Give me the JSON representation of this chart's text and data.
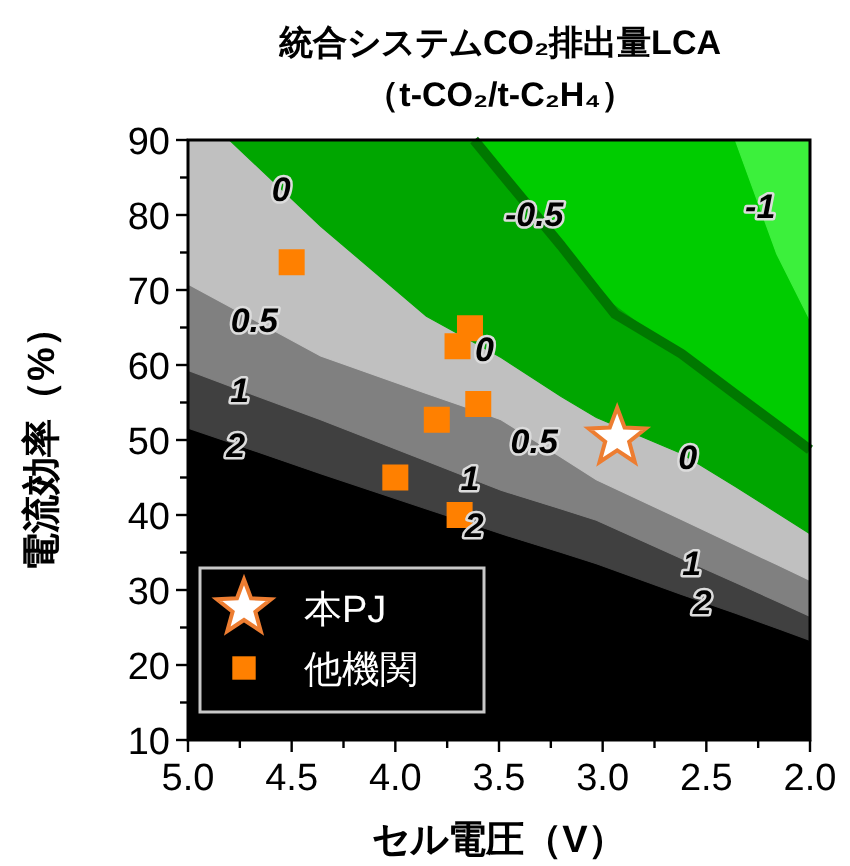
{
  "chart_data": {
    "type": "area",
    "title": "統合システムCO₂排出量LCA",
    "subtitle": "（t-CO₂/t-C₂H₄）",
    "xlabel": "セル電圧（V）",
    "ylabel": "電流効率（%）",
    "xlim": [
      5,
      2
    ],
    "ylim": [
      10,
      90
    ],
    "xticks": [
      {
        "value": 5,
        "label": "5.0"
      },
      {
        "value": 4.75,
        "label": null
      },
      {
        "value": 4.5,
        "label": "4.5"
      },
      {
        "value": 4.25,
        "label": null
      },
      {
        "value": 4,
        "label": "4.0"
      },
      {
        "value": 3.75,
        "label": null
      },
      {
        "value": 3.5,
        "label": "3.5"
      },
      {
        "value": 3.25,
        "label": null
      },
      {
        "value": 3,
        "label": "3.0"
      },
      {
        "value": 2.75,
        "label": null
      },
      {
        "value": 2.5,
        "label": "2.5"
      },
      {
        "value": 2.25,
        "label": null
      },
      {
        "value": 2,
        "label": "2.0"
      }
    ],
    "yticks": [
      10,
      {
        "value": 15,
        "label": null
      },
      20,
      {
        "value": 25,
        "label": null
      },
      30,
      {
        "value": 35,
        "label": null
      },
      40,
      {
        "value": 45,
        "label": null
      },
      50,
      {
        "value": 55,
        "label": null
      },
      60,
      {
        "value": 65,
        "label": null
      },
      70,
      {
        "value": 75,
        "label": null
      },
      80,
      {
        "value": 85,
        "label": null
      },
      90
    ],
    "grid": false,
    "legend": "bottom left",
    "x": [
      5,
      4.8,
      4.36,
      3.85,
      3.62,
      3.49,
      3.2,
      3.03,
      2.62,
      2.36,
      2.16,
      2
    ],
    "series": [
      {
        "color": "#000000",
        "values": [
          51.6,
          49.7,
          45.5,
          40.8,
          38.7,
          37.5,
          35.0,
          33.5,
          29.4,
          26.9,
          24.9,
          23.3
        ]
      },
      {
        "color": "#404040",
        "values": [
          59.3,
          57.2,
          52.7,
          47.2,
          44.7,
          43.3,
          40.8,
          39.3,
          34.2,
          31.0,
          28.5,
          26.5
        ]
      },
      {
        "color": "#808080",
        "values": [
          70.8,
          67.8,
          61.2,
          56.2,
          54.0,
          52.7,
          47.7,
          44.7,
          39.4,
          36.0,
          33.4,
          31.3
        ]
      },
      {
        "color": "#c0c0c0",
        "values": [
          90,
          90,
          78.5,
          66.5,
          63.0,
          61.0,
          55.8,
          53.0,
          48.2,
          43.8,
          40.3,
          37.5
        ]
      },
      {
        "color": "#00a600",
        "values": [
          90,
          90,
          90,
          90,
          90,
          85.6,
          75.9,
          69.9,
          61.5,
          56.1,
          52.0,
          48.7
        ]
      },
      {
        "color": "#00cc00",
        "values": [
          90,
          90,
          90,
          90,
          90,
          90,
          90,
          90,
          90,
          90,
          74.8,
          66
        ]
      },
      {
        "color": "#3cf03c",
        "values": [
          90,
          90,
          90,
          90,
          90,
          90,
          90,
          90,
          90,
          90,
          90,
          90
        ]
      },
      {
        "type": "line",
        "color": "#007800",
        "x": [
          3.62,
          3.49,
          3.2,
          3.03,
          2.94,
          2.62,
          2.36,
          2.16,
          2
        ],
        "values": [
          90,
          85.6,
          75.9,
          69.9,
          66.8,
          61.5,
          56.1,
          52.0,
          48.7
        ]
      },
      {
        "type": "scatter",
        "name": "本PJ",
        "marker": "star",
        "color": "#ed7d31",
        "x": [
          2.93
        ],
        "values": [
          50.3
        ]
      },
      {
        "type": "scatter",
        "name": "他機関",
        "marker": "square",
        "color": "#ff8000",
        "x": [
          4.5,
          3.64,
          3.7,
          3.6,
          3.8,
          4.0,
          3.69
        ],
        "values": [
          73.7,
          64.9,
          62.5,
          54.8,
          52.7,
          45,
          40
        ]
      }
    ],
    "annotations": [
      {
        "text": "0",
        "x": 4.55,
        "y": 83.5
      },
      {
        "text": "0.5",
        "x": 4.68,
        "y": 66
      },
      {
        "text": "1",
        "x": 4.75,
        "y": 56.7
      },
      {
        "text": "2",
        "x": 4.77,
        "y": 49.4
      },
      {
        "text": "0",
        "x": 3.57,
        "y": 62.2
      },
      {
        "text": "1",
        "x": 3.64,
        "y": 44.9
      },
      {
        "text": "2",
        "x": 3.62,
        "y": 38.7
      },
      {
        "text": "0.5",
        "x": 3.33,
        "y": 49.9
      },
      {
        "text": "0",
        "x": 2.59,
        "y": 47.7
      },
      {
        "text": "1",
        "x": 2.57,
        "y": 33.6
      },
      {
        "text": "2",
        "x": 2.52,
        "y": 28.4
      },
      {
        "text": "-0.5",
        "x": 3.33,
        "y": 80.2
      },
      {
        "text": "-1",
        "x": 2.24,
        "y": 81.2
      }
    ]
  }
}
